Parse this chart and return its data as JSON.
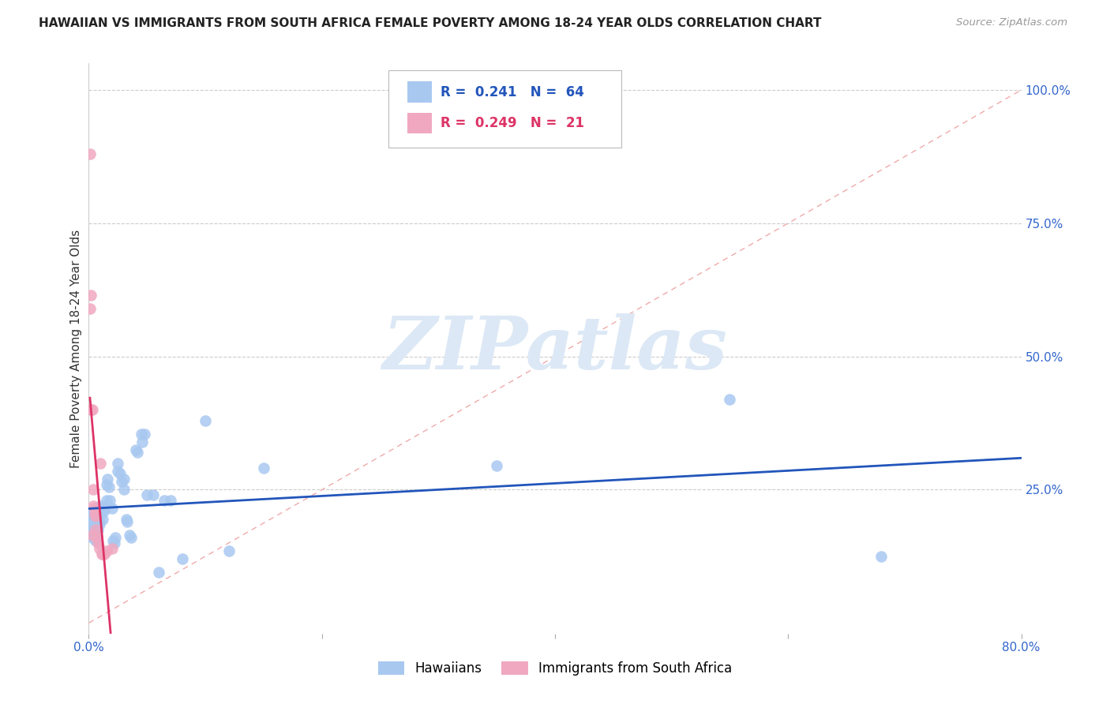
{
  "title": "HAWAIIAN VS IMMIGRANTS FROM SOUTH AFRICA FEMALE POVERTY AMONG 18-24 YEAR OLDS CORRELATION CHART",
  "source": "Source: ZipAtlas.com",
  "ylabel": "Female Poverty Among 18-24 Year Olds",
  "xlim": [
    0.0,
    0.8
  ],
  "ylim": [
    -0.02,
    1.05
  ],
  "blue_R": 0.241,
  "blue_N": 64,
  "pink_R": 0.249,
  "pink_N": 21,
  "blue_color": "#a8c8f0",
  "pink_color": "#f0a8c0",
  "blue_line_color": "#2255bb",
  "pink_line_color": "#dd3366",
  "diagonal_color": "#f0aaaa",
  "background_color": "#ffffff",
  "watermark_color": "#dce8f5",
  "hawaiians_scatter_x": [
    0.001,
    0.001,
    0.002,
    0.002,
    0.002,
    0.003,
    0.003,
    0.003,
    0.004,
    0.004,
    0.004,
    0.005,
    0.005,
    0.005,
    0.006,
    0.006,
    0.007,
    0.007,
    0.008,
    0.008,
    0.009,
    0.009,
    0.01,
    0.01,
    0.011,
    0.012,
    0.013,
    0.013,
    0.015,
    0.015,
    0.016,
    0.017,
    0.018,
    0.02,
    0.021,
    0.022,
    0.023,
    0.025,
    0.025,
    0.027,
    0.028,
    0.03,
    0.03,
    0.032,
    0.033,
    0.035,
    0.036,
    0.04,
    0.042,
    0.045,
    0.046,
    0.048,
    0.05,
    0.055,
    0.06,
    0.065,
    0.07,
    0.08,
    0.1,
    0.12,
    0.15,
    0.35,
    0.55,
    0.68
  ],
  "hawaiians_scatter_y": [
    0.2,
    0.18,
    0.195,
    0.185,
    0.165,
    0.205,
    0.175,
    0.16,
    0.21,
    0.19,
    0.17,
    0.18,
    0.195,
    0.165,
    0.155,
    0.2,
    0.21,
    0.18,
    0.175,
    0.195,
    0.185,
    0.19,
    0.22,
    0.205,
    0.215,
    0.195,
    0.21,
    0.215,
    0.23,
    0.26,
    0.27,
    0.255,
    0.23,
    0.215,
    0.155,
    0.15,
    0.16,
    0.285,
    0.3,
    0.28,
    0.265,
    0.27,
    0.25,
    0.195,
    0.19,
    0.165,
    0.16,
    0.325,
    0.32,
    0.355,
    0.34,
    0.355,
    0.24,
    0.24,
    0.095,
    0.23,
    0.23,
    0.12,
    0.38,
    0.135,
    0.29,
    0.295,
    0.42,
    0.125
  ],
  "southafrica_scatter_x": [
    0.001,
    0.001,
    0.002,
    0.002,
    0.003,
    0.003,
    0.004,
    0.004,
    0.005,
    0.005,
    0.006,
    0.006,
    0.007,
    0.008,
    0.009,
    0.01,
    0.011,
    0.012,
    0.013,
    0.015,
    0.02
  ],
  "southafrica_scatter_y": [
    0.88,
    0.59,
    0.615,
    0.4,
    0.4,
    0.165,
    0.25,
    0.22,
    0.205,
    0.215,
    0.2,
    0.175,
    0.16,
    0.15,
    0.14,
    0.3,
    0.13,
    0.13,
    0.13,
    0.135,
    0.14
  ]
}
